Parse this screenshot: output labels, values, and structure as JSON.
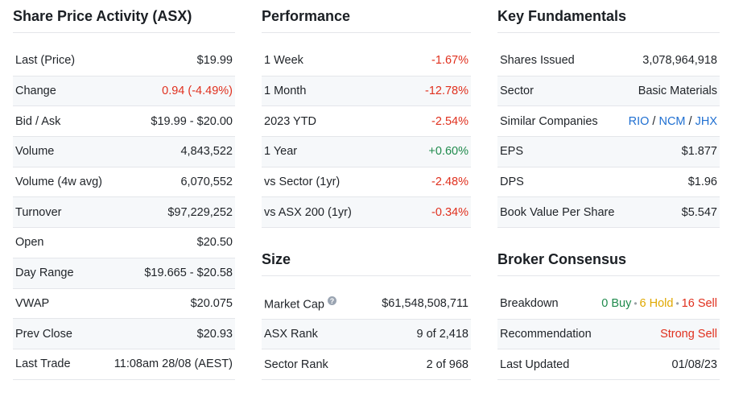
{
  "share_price": {
    "title": "Share Price Activity (ASX)",
    "rows": [
      {
        "label": "Last (Price)",
        "value": "$19.99"
      },
      {
        "label": "Change",
        "value": "0.94 (-4.49%)"
      },
      {
        "label": "Bid / Ask",
        "value": "$19.99 - $20.00"
      },
      {
        "label": "Volume",
        "value": "4,843,522"
      },
      {
        "label": "Volume (4w avg)",
        "value": "6,070,552"
      },
      {
        "label": "Turnover",
        "value": "$97,229,252"
      },
      {
        "label": "Open",
        "value": "$20.50"
      },
      {
        "label": "Day Range",
        "value": "$19.665 - $20.58"
      },
      {
        "label": "VWAP",
        "value": "$20.075"
      },
      {
        "label": "Prev Close",
        "value": "$20.93"
      },
      {
        "label": "Last Trade",
        "value": "11:08am 28/08 (AEST)"
      }
    ]
  },
  "performance": {
    "title": "Performance",
    "rows": [
      {
        "label": "1 Week",
        "value": "-1.67%"
      },
      {
        "label": "1 Month",
        "value": "-12.78%"
      },
      {
        "label": "2023 YTD",
        "value": "-2.54%"
      },
      {
        "label": "1 Year",
        "value": "+0.60%"
      },
      {
        "label": "vs Sector (1yr)",
        "value": "-2.48%"
      },
      {
        "label": "vs ASX 200 (1yr)",
        "value": "-0.34%"
      }
    ]
  },
  "size": {
    "title": "Size",
    "help_icon": "question-icon",
    "help_glyph": "?",
    "rows": [
      {
        "label": "Market Cap",
        "value": "$61,548,508,711"
      },
      {
        "label": "ASX Rank",
        "value": "9 of 2,418"
      },
      {
        "label": "Sector Rank",
        "value": "2 of 968"
      }
    ]
  },
  "fundamentals": {
    "title": "Key Fundamentals",
    "rows": [
      {
        "label": "Shares Issued",
        "value": "3,078,964,918"
      },
      {
        "label": "Sector",
        "value": "Basic Materials"
      },
      {
        "label": "Similar Companies",
        "links": [
          "RIO",
          "NCM",
          "JHX"
        ],
        "separator": "/"
      },
      {
        "label": "EPS",
        "value": "$1.877"
      },
      {
        "label": "DPS",
        "value": "$1.96"
      },
      {
        "label": "Book Value Per Share",
        "value": "$5.547"
      }
    ]
  },
  "broker": {
    "title": "Broker Consensus",
    "rows": [
      {
        "label": "Breakdown",
        "buy": "0 Buy",
        "hold": "6 Hold",
        "sell": "16 Sell",
        "dot": "•"
      },
      {
        "label": "Recommendation",
        "value": "Strong Sell"
      },
      {
        "label": "Last Updated",
        "value": "01/08/23"
      }
    ]
  },
  "colors": {
    "negative": "#e0301e",
    "positive": "#1f8a4c",
    "link": "#1f6fd1",
    "hold": "#e0a800",
    "stripe": "#f6f8fa",
    "divider": "#e4e6ea"
  }
}
